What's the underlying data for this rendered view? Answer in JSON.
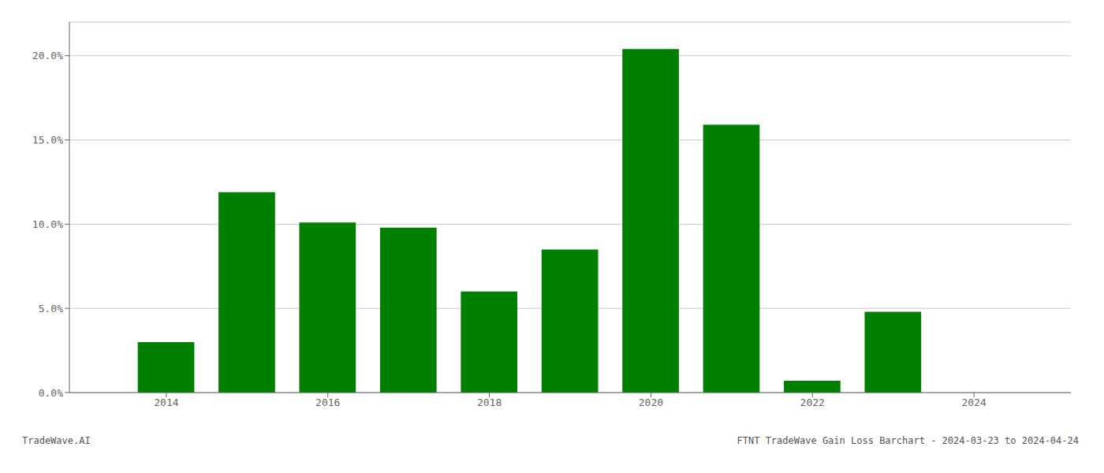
{
  "chart_data": {
    "type": "bar",
    "x": [
      2014,
      2015,
      2016,
      2017,
      2018,
      2019,
      2020,
      2021,
      2022,
      2023,
      2024
    ],
    "values": [
      0.03,
      0.119,
      0.101,
      0.098,
      0.06,
      0.085,
      0.204,
      0.159,
      0.007,
      0.048,
      0.0
    ],
    "color": "#008000",
    "xlim": [
      2012.8,
      2025.2
    ],
    "xticks": [
      2014,
      2016,
      2018,
      2020,
      2022,
      2024
    ],
    "ylim": [
      0,
      0.22
    ],
    "yticks": [
      {
        "value": 0.0,
        "label": "0.0%"
      },
      {
        "value": 0.05,
        "label": "5.0%"
      },
      {
        "value": 0.1,
        "label": "10.0%"
      },
      {
        "value": 0.15,
        "label": "15.0%"
      },
      {
        "value": 0.2,
        "label": "20.0%"
      }
    ],
    "grid": true,
    "annotations": [
      "TradeWave.AI",
      "FTNT TradeWave Gain Loss Barchart - 2024-03-23 to 2024-04-24"
    ]
  }
}
